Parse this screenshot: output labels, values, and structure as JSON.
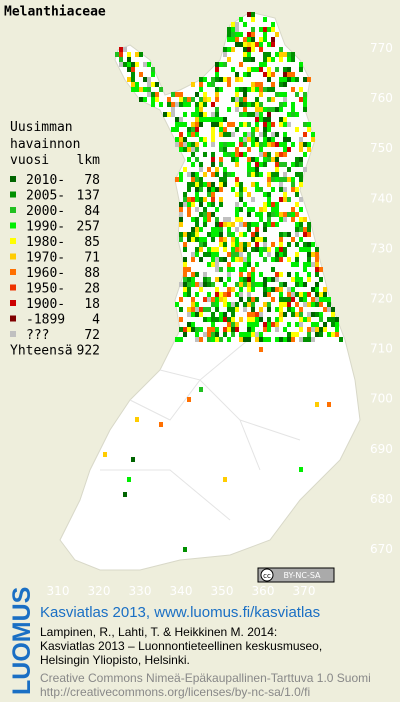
{
  "title": "Melanthiaceae",
  "legend": {
    "heading": [
      "Uusimman",
      "havainnon"
    ],
    "col_year": "vuosi",
    "col_count": "lkm",
    "rows": [
      {
        "label": "2010-",
        "count": 78,
        "color": "#006400"
      },
      {
        "label": "2005-",
        "count": 137,
        "color": "#009000"
      },
      {
        "label": "2000-",
        "count": 84,
        "color": "#20c020"
      },
      {
        "label": "1990-",
        "count": 257,
        "color": "#00ee00"
      },
      {
        "label": "1980-",
        "count": 85,
        "color": "#ffff00"
      },
      {
        "label": "1970-",
        "count": 71,
        "color": "#ffcc00"
      },
      {
        "label": "1960-",
        "count": 88,
        "color": "#ff7000"
      },
      {
        "label": "1950-",
        "count": 28,
        "color": "#ee3300"
      },
      {
        "label": "1900-",
        "count": 18,
        "color": "#cc0000"
      },
      {
        "label": "-1899",
        "count": 4,
        "color": "#800000"
      },
      {
        "label": "???",
        "count": 72,
        "color": "#c0c0c0"
      }
    ],
    "total_label": "Yhteensä",
    "total": 922
  },
  "map": {
    "xticks": [
      310,
      320,
      330,
      340,
      350,
      360,
      370
    ],
    "yticks": [
      670,
      680,
      690,
      700,
      710,
      720,
      730,
      740,
      750,
      760,
      770
    ]
  },
  "license_badge": "BY-NC-SA",
  "logo": "LUOMUS",
  "footer": {
    "site": "Kasviatlas 2013, www.luomus.fi/kasviatlas",
    "citation": [
      "Lampinen, R., Lahti, T. & Heikkinen M. 2014:",
      "Kasviatlas 2013 – Luonnontieteellinen keskusmuseo,",
      "Helsingin Yliopisto, Helsinki."
    ],
    "license": [
      "Creative Commons Nimeä-Epäkaupallinen-Tarttuva 1.0 Suomi",
      "http://creativecommons.org/licenses/by-nc-sa/1.0/fi"
    ]
  }
}
